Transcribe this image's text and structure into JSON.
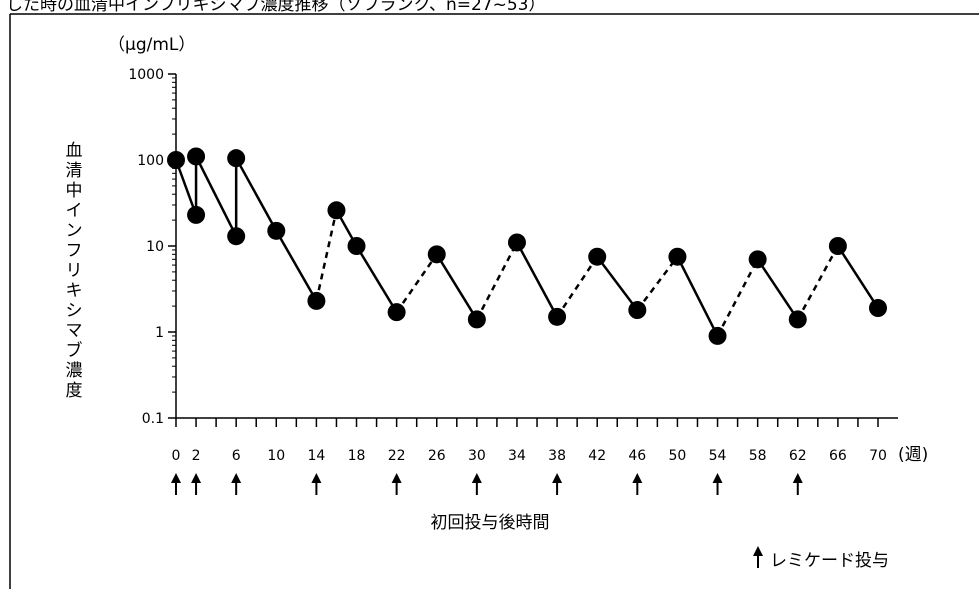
{
  "chart_data": {
    "type": "line",
    "title_clipped": "した時の血清中インフリキシマブ濃度推移（ソフランク、n=27~53）",
    "unit_label": "（μg/mL）",
    "ylabel": "血清中インフリキシマブ濃度",
    "xlabel": "初回投与後時間",
    "x_unit": "(週)",
    "y_scale": "log",
    "ylim": [
      0.1,
      1000
    ],
    "y_ticks": [
      "1000",
      "100",
      "10",
      "1",
      "0.1"
    ],
    "xlim": [
      0,
      72
    ],
    "x_ticks": [
      "0",
      "2",
      "6",
      "10",
      "14",
      "18",
      "22",
      "26",
      "30",
      "34",
      "38",
      "42",
      "46",
      "50",
      "54",
      "58",
      "62",
      "66",
      "70"
    ],
    "points": [
      {
        "x": 0,
        "y": 100
      },
      {
        "x": 2,
        "y": 23
      },
      {
        "x": 2,
        "y": 110
      },
      {
        "x": 6,
        "y": 13
      },
      {
        "x": 6,
        "y": 105
      },
      {
        "x": 10,
        "y": 15
      },
      {
        "x": 14,
        "y": 2.3
      },
      {
        "x": 16,
        "y": 26
      },
      {
        "x": 18,
        "y": 10
      },
      {
        "x": 22,
        "y": 1.7
      },
      {
        "x": 26,
        "y": 8
      },
      {
        "x": 30,
        "y": 1.4
      },
      {
        "x": 34,
        "y": 11
      },
      {
        "x": 38,
        "y": 1.5
      },
      {
        "x": 42,
        "y": 7.5
      },
      {
        "x": 46,
        "y": 1.8
      },
      {
        "x": 50,
        "y": 7.5
      },
      {
        "x": 54,
        "y": 0.9
      },
      {
        "x": 58,
        "y": 7
      },
      {
        "x": 62,
        "y": 1.4
      },
      {
        "x": 66,
        "y": 10
      },
      {
        "x": 70,
        "y": 1.9
      }
    ],
    "segments": [
      {
        "from": 0,
        "to": 1,
        "style": "solid"
      },
      {
        "from": 1,
        "to": 2,
        "style": "solid"
      },
      {
        "from": 2,
        "to": 3,
        "style": "solid"
      },
      {
        "from": 3,
        "to": 4,
        "style": "solid"
      },
      {
        "from": 4,
        "to": 5,
        "style": "solid"
      },
      {
        "from": 5,
        "to": 6,
        "style": "solid"
      },
      {
        "from": 6,
        "to": 7,
        "style": "dashed"
      },
      {
        "from": 7,
        "to": 8,
        "style": "solid"
      },
      {
        "from": 8,
        "to": 9,
        "style": "solid"
      },
      {
        "from": 9,
        "to": 10,
        "style": "dashed"
      },
      {
        "from": 10,
        "to": 11,
        "style": "solid"
      },
      {
        "from": 11,
        "to": 12,
        "style": "dashed"
      },
      {
        "from": 12,
        "to": 13,
        "style": "solid"
      },
      {
        "from": 13,
        "to": 14,
        "style": "dashed"
      },
      {
        "from": 14,
        "to": 15,
        "style": "solid"
      },
      {
        "from": 15,
        "to": 16,
        "style": "dashed"
      },
      {
        "from": 16,
        "to": 17,
        "style": "solid"
      },
      {
        "from": 17,
        "to": 18,
        "style": "dashed"
      },
      {
        "from": 18,
        "to": 19,
        "style": "solid"
      },
      {
        "from": 19,
        "to": 20,
        "style": "dashed"
      },
      {
        "from": 20,
        "to": 21,
        "style": "solid"
      }
    ],
    "dose_weeks": [
      0,
      2,
      6,
      14,
      22,
      30,
      38,
      46,
      54,
      62
    ],
    "legend": {
      "symbol": "↑",
      "label": "レミケード投与"
    },
    "grid": false
  }
}
